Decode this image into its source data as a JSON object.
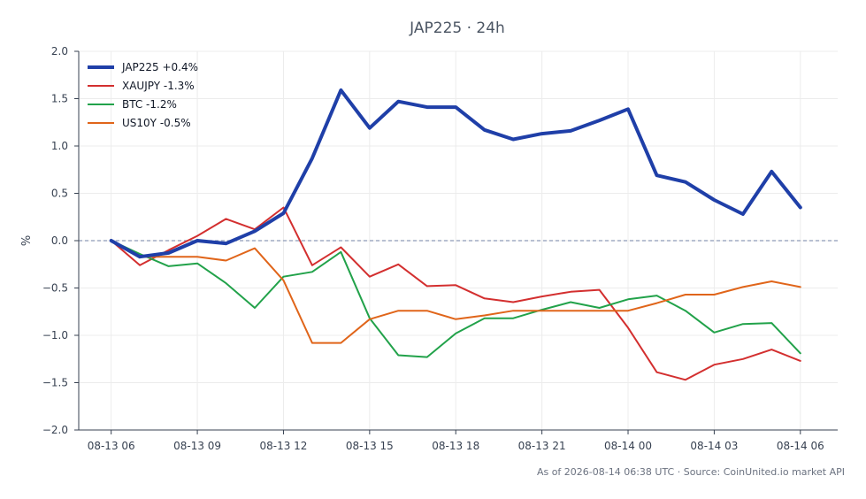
{
  "chart_data": {
    "type": "line",
    "title": "JAP225 · 24h",
    "ylabel": "%",
    "xlabel": "",
    "ylim": [
      -2.0,
      2.0
    ],
    "yticks": [
      "2.0",
      "1.5",
      "1.0",
      "0.5",
      "0.0",
      "−0.5",
      "−1.0",
      "−1.5",
      "−2.0"
    ],
    "ytick_values": [
      2.0,
      1.5,
      1.0,
      0.5,
      0.0,
      -0.5,
      -1.0,
      -1.5,
      -2.0
    ],
    "xticks": [
      "08-13 06",
      "08-13 09",
      "08-13 12",
      "08-13 15",
      "08-13 18",
      "08-13 21",
      "08-14 00",
      "08-14 03",
      "08-14 06"
    ],
    "xtick_hours": [
      0,
      3,
      6,
      9,
      12,
      15,
      18,
      21,
      24
    ],
    "xlim_hours": [
      -1.13,
      25.3
    ],
    "x_hours": [
      0,
      1,
      2,
      3,
      4,
      5,
      6,
      7,
      8,
      9,
      10,
      11,
      12,
      13,
      14,
      15,
      16,
      17,
      18,
      19,
      20,
      21,
      22,
      23,
      24
    ],
    "grid": true,
    "zero_line": true,
    "legend_position": "top-left",
    "series": [
      {
        "name": "JAP225 +0.4%",
        "color": "#1f3fa8",
        "width": 4,
        "values": [
          0.0,
          -0.17,
          -0.13,
          0.0,
          -0.03,
          0.1,
          0.29,
          0.87,
          1.59,
          1.19,
          1.47,
          1.41,
          1.41,
          1.17,
          1.07,
          1.13,
          1.16,
          1.27,
          1.39,
          0.69,
          0.62,
          0.43,
          0.28,
          0.73,
          0.35
        ]
      },
      {
        "name": "XAUJPY -1.3%",
        "color": "#d32f2f",
        "width": 2,
        "values": [
          0.0,
          -0.26,
          -0.1,
          0.05,
          0.23,
          0.12,
          0.35,
          -0.26,
          -0.07,
          -0.38,
          -0.25,
          -0.48,
          -0.47,
          -0.61,
          -0.65,
          -0.59,
          -0.54,
          -0.52,
          -0.92,
          -1.39,
          -1.47,
          -1.31,
          -1.25,
          -1.15,
          -1.27
        ]
      },
      {
        "name": "BTC -1.2%",
        "color": "#22a24a",
        "width": 2,
        "values": [
          0.0,
          -0.14,
          -0.27,
          -0.24,
          -0.45,
          -0.71,
          -0.38,
          -0.33,
          -0.12,
          -0.82,
          -1.21,
          -1.23,
          -0.98,
          -0.82,
          -0.82,
          -0.73,
          -0.65,
          -0.71,
          -0.62,
          -0.58,
          -0.74,
          -0.97,
          -0.88,
          -0.87,
          -1.19
        ]
      },
      {
        "name": "US10Y -0.5%",
        "color": "#e0651a",
        "width": 2,
        "values": [
          0.0,
          -0.17,
          -0.17,
          -0.17,
          -0.21,
          -0.08,
          -0.42,
          -1.08,
          -1.08,
          -0.83,
          -0.74,
          -0.74,
          -0.83,
          -0.79,
          -0.74,
          -0.74,
          -0.74,
          -0.74,
          -0.74,
          -0.66,
          -0.57,
          -0.57,
          -0.49,
          -0.43,
          -0.49
        ]
      }
    ],
    "footer": "As of 2026-08-14 06:38 UTC · Source: CoinUnited.io market API"
  }
}
